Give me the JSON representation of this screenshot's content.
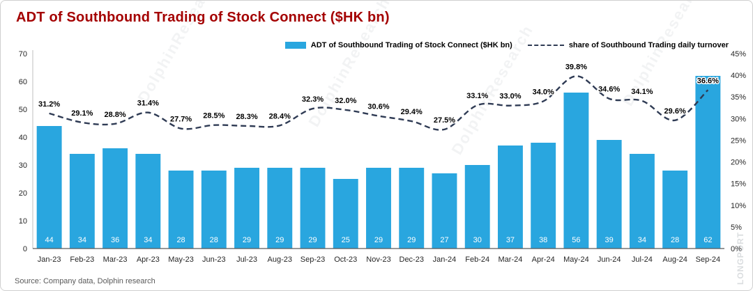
{
  "title": "ADT of Southbound Trading of Stock Connect  ($HK bn)",
  "source": "Source:  Company data, Dolphin research",
  "watermark": {
    "text": "DolphinResearch",
    "brand": "LONGPORT"
  },
  "colors": {
    "bar": "#29A6DF",
    "line": "#2F3B54",
    "title": "#A40000",
    "source": "#595959"
  },
  "legend": [
    {
      "type": "bar",
      "label": "ADT of Southbound Trading of Stock Connect  ($HK bn)"
    },
    {
      "type": "line",
      "label": "share of Southbound Trading daily turnover"
    }
  ],
  "chart_data": {
    "type": "bar+line",
    "title": "ADT of Southbound Trading of Stock Connect ($HK bn)",
    "categories": [
      "Jan-23",
      "Feb-23",
      "Mar-23",
      "Apr-23",
      "May-23",
      "Jun-23",
      "Jul-23",
      "Aug-23",
      "Sep-23",
      "Oct-23",
      "Nov-23",
      "Dec-23",
      "Jan-24",
      "Feb-24",
      "Mar-24",
      "Apr-24",
      "May-24",
      "Jun-24",
      "Jul-24",
      "Aug-24",
      "Sep-24"
    ],
    "series": [
      {
        "name": "ADT of Southbound Trading of Stock Connect ($HK bn)",
        "type": "bar",
        "axis": "left",
        "values": [
          44,
          34,
          36,
          34,
          28,
          28,
          29,
          29,
          29,
          25,
          29,
          29,
          27,
          30,
          37,
          38,
          56,
          39,
          34,
          28,
          62
        ]
      },
      {
        "name": "share of Southbound Trading daily turnover",
        "type": "line",
        "axis": "right",
        "values": [
          31.2,
          29.1,
          28.8,
          31.4,
          27.7,
          28.5,
          28.3,
          28.4,
          32.3,
          32.0,
          30.6,
          29.4,
          27.5,
          33.1,
          33.0,
          34.0,
          39.8,
          34.6,
          34.1,
          29.6,
          36.6
        ],
        "labels": [
          "31.2%",
          "29.1%",
          "28.8%",
          "31.4%",
          "27.7%",
          "28.5%",
          "28.3%",
          "28.4%",
          "32.3%",
          "32.0%",
          "30.6%",
          "29.4%",
          "27.5%",
          "33.1%",
          "33.0%",
          "34.0%",
          "39.8%",
          "34.6%",
          "34.1%",
          "29.6%",
          "36.6%"
        ]
      }
    ],
    "left_axis": {
      "min": 0,
      "max": 70,
      "step": 10,
      "ticks": [
        "0",
        "10",
        "20",
        "30",
        "40",
        "50",
        "60",
        "70"
      ]
    },
    "right_axis": {
      "min": 0,
      "max": 45,
      "step": 5,
      "ticks": [
        "0%",
        "5%",
        "10%",
        "15%",
        "20%",
        "25%",
        "30%",
        "35%",
        "40%",
        "45%"
      ]
    },
    "grid": false,
    "legend_position": "top-right"
  }
}
